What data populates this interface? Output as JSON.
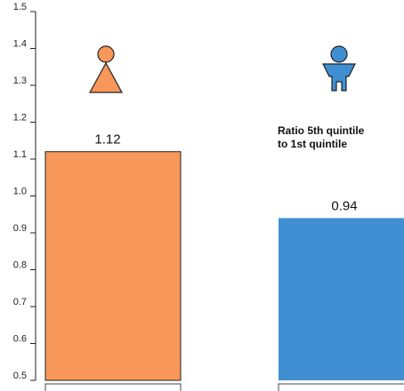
{
  "chart_data": {
    "type": "bar",
    "categories": [
      "",
      ""
    ],
    "values": [
      1.12,
      0.94
    ],
    "value_labels": [
      "1.12",
      "0.94"
    ],
    "ylim": [
      0.5,
      1.5
    ],
    "yticks": [
      "0.5",
      "0.6",
      "0.7",
      "0.8",
      "0.9",
      "1.0",
      "1.1",
      "1.2",
      "1.3",
      "1.4",
      "1.5"
    ],
    "annotation": [
      "Ratio 5th quintile",
      "to 1st quintile"
    ],
    "bar_colors": [
      "#f7975a",
      "#3f8fd2"
    ],
    "icons": [
      "female-figure-icon",
      "male-figure-icon"
    ],
    "icon_colors": [
      "#f7975a",
      "#3f8fd2"
    ],
    "grid": false,
    "title": "",
    "xlabel": "",
    "ylabel": ""
  }
}
